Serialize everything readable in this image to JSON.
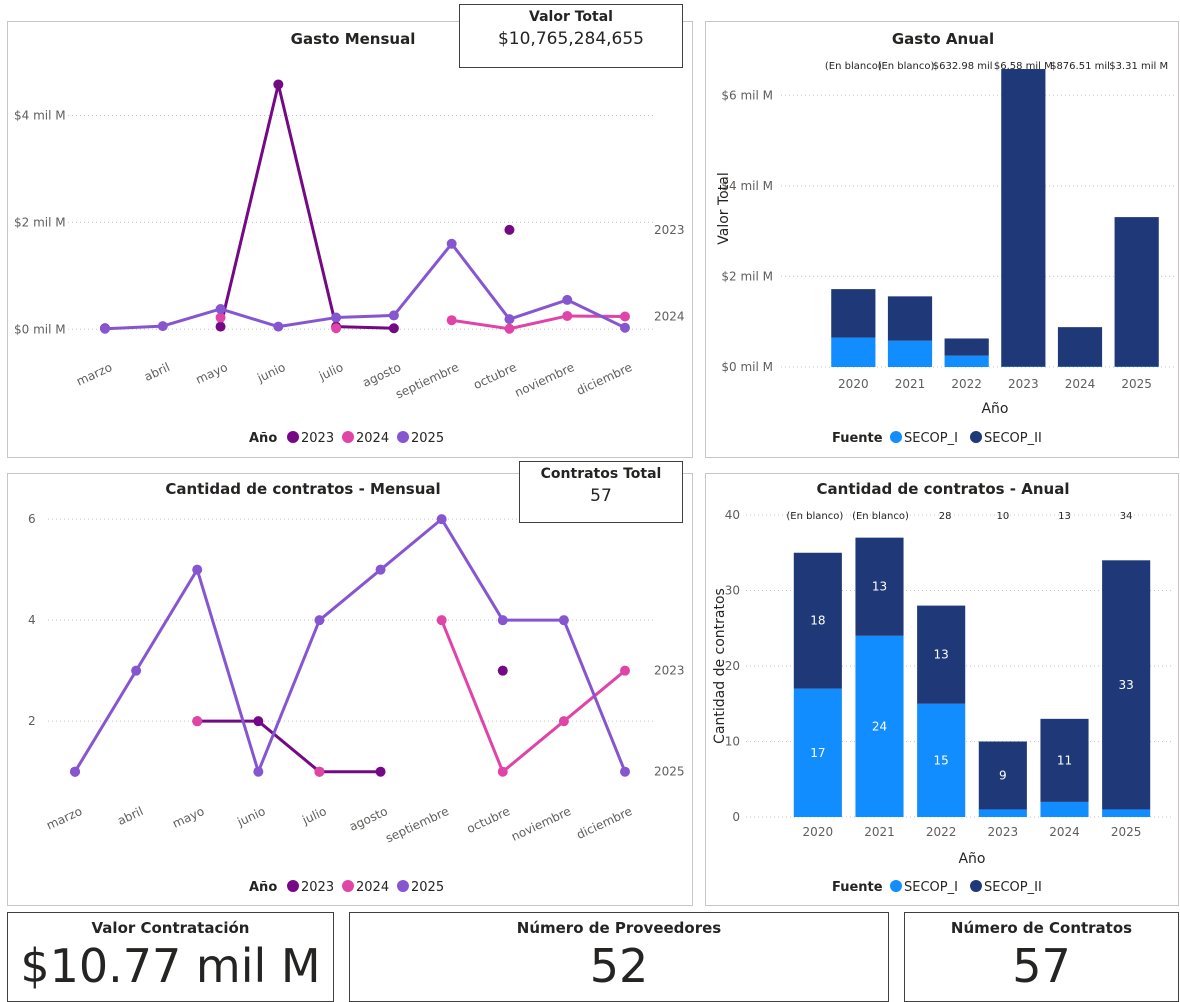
{
  "colors": {
    "y2023": "#750985",
    "y2024": "#e044a7",
    "y2025": "#8656d0",
    "secop_i": "#118dff",
    "secop_ii": "#1f3877"
  },
  "cards": {
    "valor_total": {
      "title": "Valor Total",
      "value": "$10,765,284,655"
    },
    "contratos_total": {
      "title": "Contratos Total",
      "value": "57"
    }
  },
  "kpis": {
    "valor_contratacion": {
      "title": "Valor Contratación",
      "value": "$10.77 mil M"
    },
    "numero_proveedores": {
      "title": "Número de Proveedores",
      "value": "52"
    },
    "numero_contratos": {
      "title": "Número de Contratos",
      "value": "57"
    }
  },
  "chart_data": [
    {
      "id": "gasto_mensual",
      "type": "line",
      "title": "Gasto Mensual",
      "categories": [
        "marzo",
        "abril",
        "mayo",
        "junio",
        "julio",
        "agosto",
        "septiembre",
        "octubre",
        "noviembre",
        "diciembre"
      ],
      "y_ticks": [
        {
          "v": 0,
          "label": "$0 mil M"
        },
        {
          "v": 2,
          "label": "$2 mil M"
        },
        {
          "v": 4,
          "label": "$4 mil M"
        }
      ],
      "ylim": [
        -0.2,
        5.0
      ],
      "y_unit": "mil M",
      "legend_title": "Año",
      "series": [
        {
          "name": "2023",
          "color_key": "y2023",
          "values": [
            0.02,
            null,
            0.05,
            4.58,
            0.05,
            0.02,
            null,
            1.86,
            null,
            null
          ]
        },
        {
          "name": "2024",
          "color_key": "y2024",
          "values": [
            null,
            null,
            0.22,
            null,
            0.02,
            null,
            0.17,
            0.01,
            0.25,
            0.24
          ]
        },
        {
          "name": "2025",
          "color_key": "y2025",
          "values": [
            0.01,
            0.06,
            0.38,
            0.05,
            0.22,
            0.26,
            1.6,
            0.19,
            0.55,
            0.03
          ]
        }
      ],
      "end_labels": [
        {
          "text": "2023",
          "v": 1.86
        },
        {
          "text": "2024",
          "v": 0.24
        }
      ]
    },
    {
      "id": "gasto_anual",
      "type": "bar",
      "stacked": true,
      "title": "Gasto Anual",
      "categories": [
        "2020",
        "2021",
        "2022",
        "2023",
        "2024",
        "2025"
      ],
      "xlabel": "Año",
      "ylabel": "Valor Total",
      "y_unit": "mil M",
      "y_ticks": [
        {
          "v": 0,
          "label": "$0 mil M"
        },
        {
          "v": 2,
          "label": "$2 mil M"
        },
        {
          "v": 4,
          "label": "$4 mil M"
        },
        {
          "v": 6,
          "label": "$6 mil M"
        }
      ],
      "ylim": [
        0,
        7.0
      ],
      "legend_title": "Fuente",
      "series": [
        {
          "name": "SECOP_I",
          "color_key": "secop_i",
          "values": [
            0.65,
            0.58,
            0.25,
            0.01,
            0.01,
            0.01
          ]
        },
        {
          "name": "SECOP_II",
          "color_key": "secop_ii",
          "values": [
            1.07,
            0.98,
            0.38,
            6.57,
            0.87,
            3.3
          ]
        }
      ],
      "top_labels": [
        "(En blanco)",
        "(En blanco)",
        "$632.98 mil",
        "$6.58 mil M",
        "$876.51 mil",
        "$3.31 mil M"
      ]
    },
    {
      "id": "contratos_mensual",
      "type": "line",
      "title": "Cantidad de contratos - Mensual",
      "categories": [
        "marzo",
        "abril",
        "mayo",
        "junio",
        "julio",
        "agosto",
        "septiembre",
        "octubre",
        "noviembre",
        "diciembre"
      ],
      "y_ticks": [
        {
          "v": 2,
          "label": "2"
        },
        {
          "v": 4,
          "label": "4"
        },
        {
          "v": 6,
          "label": "6"
        }
      ],
      "ylim": [
        0.4,
        6.3
      ],
      "legend_title": "Año",
      "series": [
        {
          "name": "2023",
          "color_key": "y2023",
          "values": [
            1,
            null,
            2,
            2,
            1,
            1,
            null,
            3,
            null,
            null
          ]
        },
        {
          "name": "2024",
          "color_key": "y2024",
          "values": [
            null,
            null,
            2,
            null,
            1,
            null,
            4,
            1,
            2,
            3
          ]
        },
        {
          "name": "2025",
          "color_key": "y2025",
          "values": [
            1,
            3,
            5,
            1,
            4,
            5,
            6,
            4,
            4,
            1
          ]
        }
      ],
      "end_labels": [
        {
          "text": "2023",
          "v": 3
        },
        {
          "text": "2025",
          "v": 1
        }
      ]
    },
    {
      "id": "contratos_anual",
      "type": "bar",
      "stacked": true,
      "title": "Cantidad de contratos - Anual",
      "categories": [
        "2020",
        "2021",
        "2022",
        "2023",
        "2024",
        "2025"
      ],
      "xlabel": "Año",
      "ylabel": "Cantidad de contratos",
      "y_ticks": [
        {
          "v": 0,
          "label": "0"
        },
        {
          "v": 10,
          "label": "10"
        },
        {
          "v": 20,
          "label": "20"
        },
        {
          "v": 30,
          "label": "30"
        },
        {
          "v": 40,
          "label": "40"
        }
      ],
      "ylim": [
        0,
        40
      ],
      "legend_title": "Fuente",
      "series": [
        {
          "name": "SECOP_I",
          "color_key": "secop_i",
          "values": [
            17,
            24,
            15,
            1,
            2,
            1
          ],
          "labels": [
            "17",
            "24",
            "15",
            "",
            "",
            ""
          ]
        },
        {
          "name": "SECOP_II",
          "color_key": "secop_ii",
          "values": [
            18,
            13,
            13,
            9,
            11,
            33
          ],
          "labels": [
            "18",
            "13",
            "13",
            "9",
            "11",
            "33"
          ]
        }
      ],
      "top_labels": [
        "(En blanco)",
        "(En blanco)",
        "28",
        "10",
        "13",
        "34"
      ]
    }
  ]
}
